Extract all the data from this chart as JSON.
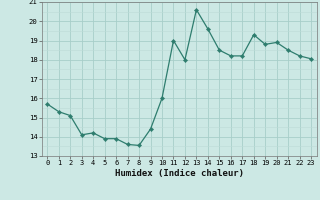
{
  "x": [
    0,
    1,
    2,
    3,
    4,
    5,
    6,
    7,
    8,
    9,
    10,
    11,
    12,
    13,
    14,
    15,
    16,
    17,
    18,
    19,
    20,
    21,
    22,
    23
  ],
  "y": [
    15.7,
    15.3,
    15.1,
    14.1,
    14.2,
    13.9,
    13.9,
    13.6,
    13.55,
    14.4,
    16.0,
    19.0,
    18.0,
    20.6,
    19.6,
    18.5,
    18.2,
    18.2,
    19.3,
    18.8,
    18.9,
    18.5,
    18.2,
    18.05
  ],
  "line_color": "#2e7d6e",
  "marker_color": "#2e7d6e",
  "bg_color": "#cce8e4",
  "grid_color_major": "#a8cec9",
  "grid_color_minor": "#bcdbd6",
  "xlabel": "Humidex (Indice chaleur)",
  "ylim": [
    13,
    21
  ],
  "yticks": [
    13,
    14,
    15,
    16,
    17,
    18,
    19,
    20,
    21
  ],
  "xticks": [
    0,
    1,
    2,
    3,
    4,
    5,
    6,
    7,
    8,
    9,
    10,
    11,
    12,
    13,
    14,
    15,
    16,
    17,
    18,
    19,
    20,
    21,
    22,
    23
  ],
  "xlim_min": -0.5,
  "xlim_max": 23.5
}
